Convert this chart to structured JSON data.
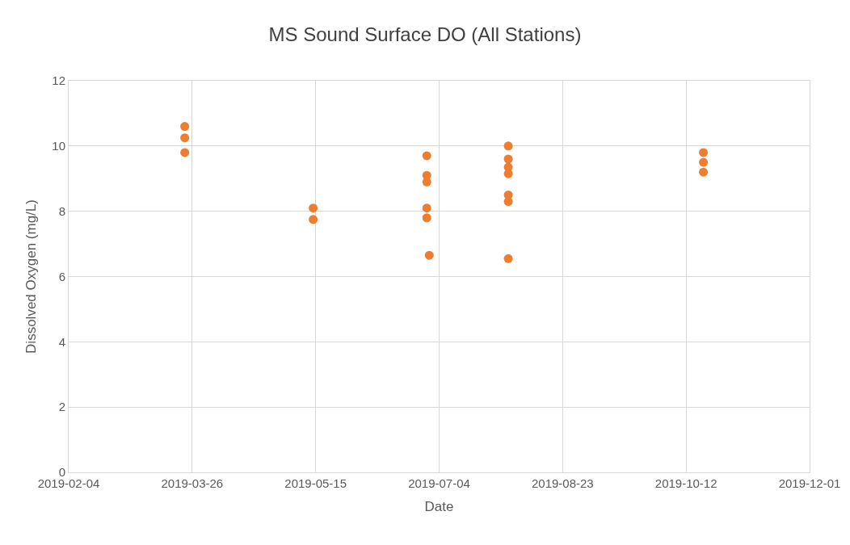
{
  "chart_data": {
    "type": "scatter",
    "title": "MS Sound Surface DO (All Stations)",
    "xlabel": "Date",
    "ylabel": "Dissolved Oxygen (mg/L)",
    "x": [
      "2019-03-23",
      "2019-03-23",
      "2019-03-23",
      "2019-05-14",
      "2019-05-14",
      "2019-06-29",
      "2019-06-29",
      "2019-06-29",
      "2019-06-29",
      "2019-06-29",
      "2019-06-30",
      "2019-08-01",
      "2019-08-01",
      "2019-08-01",
      "2019-08-01",
      "2019-08-01",
      "2019-08-01",
      "2019-08-01",
      "2019-10-19",
      "2019-10-19",
      "2019-10-19"
    ],
    "values": [
      10.6,
      10.25,
      9.8,
      8.1,
      7.75,
      9.7,
      9.1,
      8.9,
      8.1,
      7.8,
      6.65,
      10.0,
      9.6,
      9.35,
      9.15,
      8.5,
      8.3,
      6.55,
      9.8,
      9.5,
      9.2
    ],
    "color": "#ed7d31",
    "marker": "circle",
    "xlim": [
      "2019-02-04",
      "2019-12-01"
    ],
    "xticks": [
      "2019-02-04",
      "2019-03-26",
      "2019-05-15",
      "2019-07-04",
      "2019-08-23",
      "2019-10-12",
      "2019-12-01"
    ],
    "ylim": [
      0,
      12
    ],
    "yticks": [
      0,
      2,
      4,
      6,
      8,
      10,
      12
    ],
    "grid": true,
    "legend": false
  }
}
